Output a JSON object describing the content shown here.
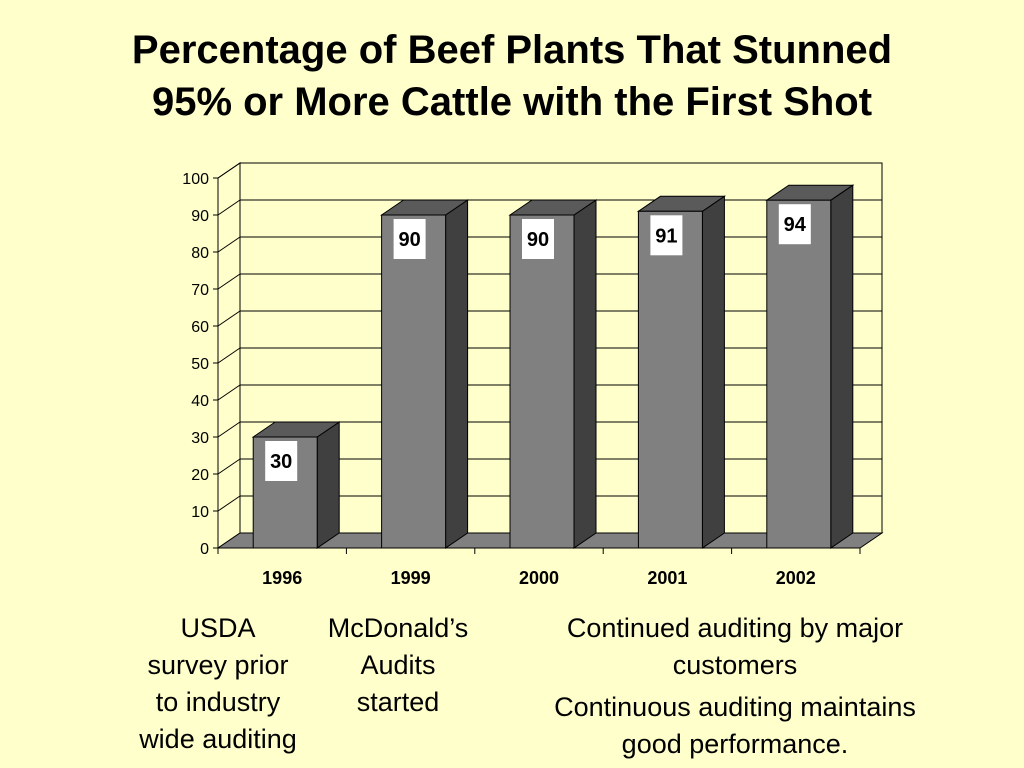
{
  "slide": {
    "title_line1": "Percentage of Beef Plants That Stunned",
    "title_line2": "95% or More Cattle with the First Shot"
  },
  "chart_data": {
    "type": "bar",
    "style": "3d",
    "categories": [
      "1996",
      "1999",
      "2000",
      "2001",
      "2002"
    ],
    "values": [
      30,
      90,
      90,
      91,
      94
    ],
    "data_labels": [
      "30",
      "90",
      "90",
      "91",
      "94"
    ],
    "ylim": [
      0,
      100
    ],
    "yticks": [
      0,
      10,
      20,
      30,
      40,
      50,
      60,
      70,
      80,
      90,
      100
    ],
    "grid": true,
    "legend": "none",
    "colors": {
      "bar_front": "#808080",
      "bar_side": "#404040",
      "bar_top": "#5a5a5a",
      "floor": "#808080",
      "plot_bg": "#FFFFCC",
      "label_box": "#FFFFFF"
    }
  },
  "notes": {
    "usda": [
      "USDA",
      "survey prior",
      "to industry",
      "wide auditing"
    ],
    "mcdonalds": [
      "McDonald’s",
      "Audits",
      "started"
    ],
    "continued": [
      "Continued auditing by major",
      "customers"
    ],
    "maintains": [
      "Continuous auditing maintains",
      "good performance."
    ]
  }
}
